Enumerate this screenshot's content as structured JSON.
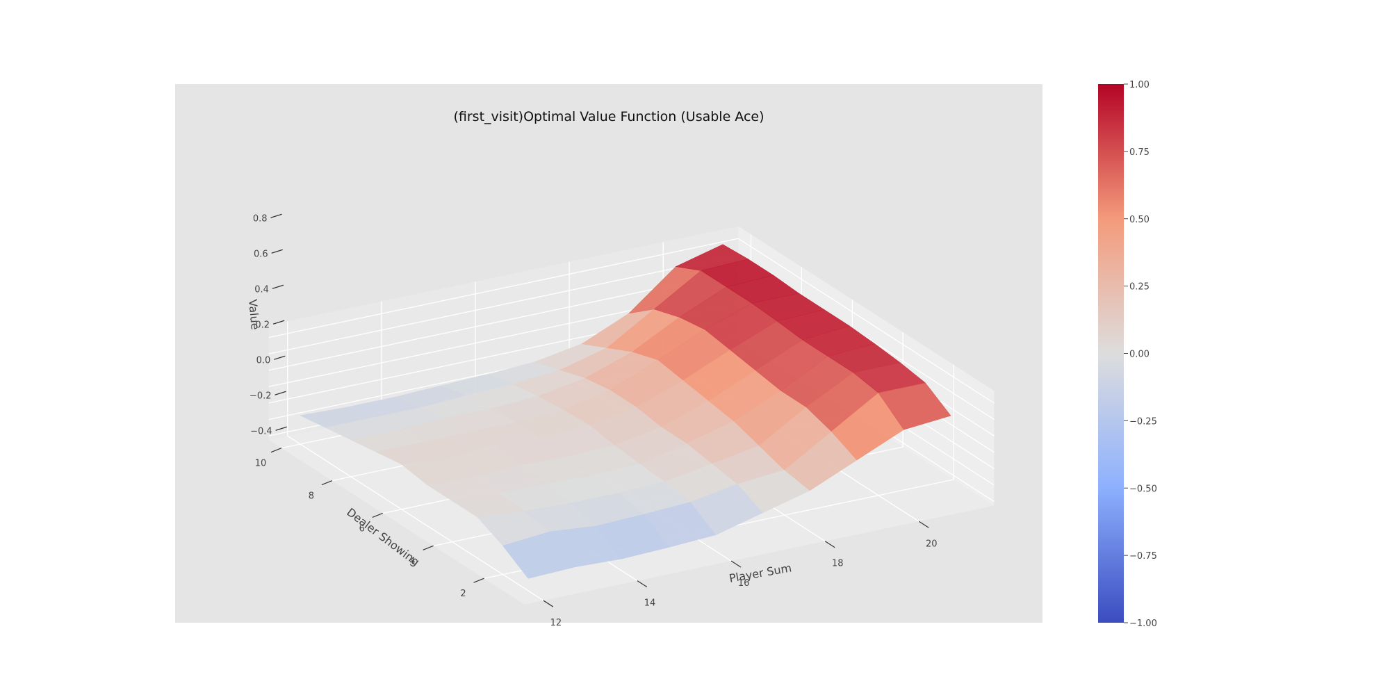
{
  "chart_data": {
    "type": "surface3d",
    "title": "(first_visit)Optimal Value Function (Usable Ace)",
    "xlabel": "Player Sum",
    "ylabel": "Dealer Showing",
    "zlabel": "Value",
    "x": [
      12,
      13,
      14,
      15,
      16,
      17,
      18,
      19,
      20,
      21
    ],
    "y": [
      1,
      2,
      3,
      4,
      5,
      6,
      7,
      8,
      9,
      10
    ],
    "x_ticks": [
      "12",
      "14",
      "16",
      "18",
      "20"
    ],
    "y_ticks": [
      "2",
      "4",
      "6",
      "8",
      "10"
    ],
    "z_ticks": [
      "−0.4",
      "−0.2",
      "0.0",
      "0.2",
      "0.4",
      "0.6",
      "0.8"
    ],
    "zlim": [
      -0.45,
      0.95
    ],
    "grid": true,
    "colormap": "coolwarm",
    "colorbar": {
      "min": -1.0,
      "max": 1.0,
      "ticks": [
        "−1.00",
        "−0.75",
        "−0.50",
        "−0.25",
        "0.00",
        "0.25",
        "0.50",
        "0.75",
        "1.00"
      ]
    },
    "z": [
      [
        -0.3,
        -0.28,
        -0.3,
        -0.28,
        -0.25,
        -0.1,
        0.05,
        0.3,
        0.55,
        0.6
      ],
      [
        -0.1,
        -0.05,
        -0.1,
        -0.08,
        -0.05,
        0.05,
        0.1,
        0.45,
        0.8,
        0.8
      ],
      [
        0.05,
        0.0,
        -0.02,
        -0.02,
        0.0,
        0.1,
        0.2,
        0.55,
        0.85,
        0.85
      ],
      [
        0.05,
        0.02,
        0.02,
        0.0,
        0.02,
        0.15,
        0.3,
        0.55,
        0.85,
        0.88
      ],
      [
        0.05,
        0.02,
        0.05,
        0.03,
        0.05,
        0.15,
        0.35,
        0.6,
        0.85,
        0.9
      ],
      [
        0.1,
        0.05,
        0.1,
        0.05,
        0.1,
        0.2,
        0.4,
        0.65,
        0.88,
        0.9
      ],
      [
        0.05,
        0.05,
        0.05,
        0.05,
        0.08,
        0.2,
        0.45,
        0.7,
        0.9,
        0.9
      ],
      [
        0.0,
        0.0,
        0.02,
        0.02,
        0.05,
        0.15,
        0.35,
        0.65,
        0.9,
        0.92
      ],
      [
        -0.05,
        -0.05,
        -0.05,
        -0.02,
        0.0,
        0.05,
        0.2,
        0.55,
        0.9,
        0.92
      ],
      [
        -0.1,
        -0.12,
        -0.12,
        -0.1,
        -0.08,
        -0.05,
        0.05,
        0.3,
        0.75,
        0.9
      ]
    ]
  }
}
